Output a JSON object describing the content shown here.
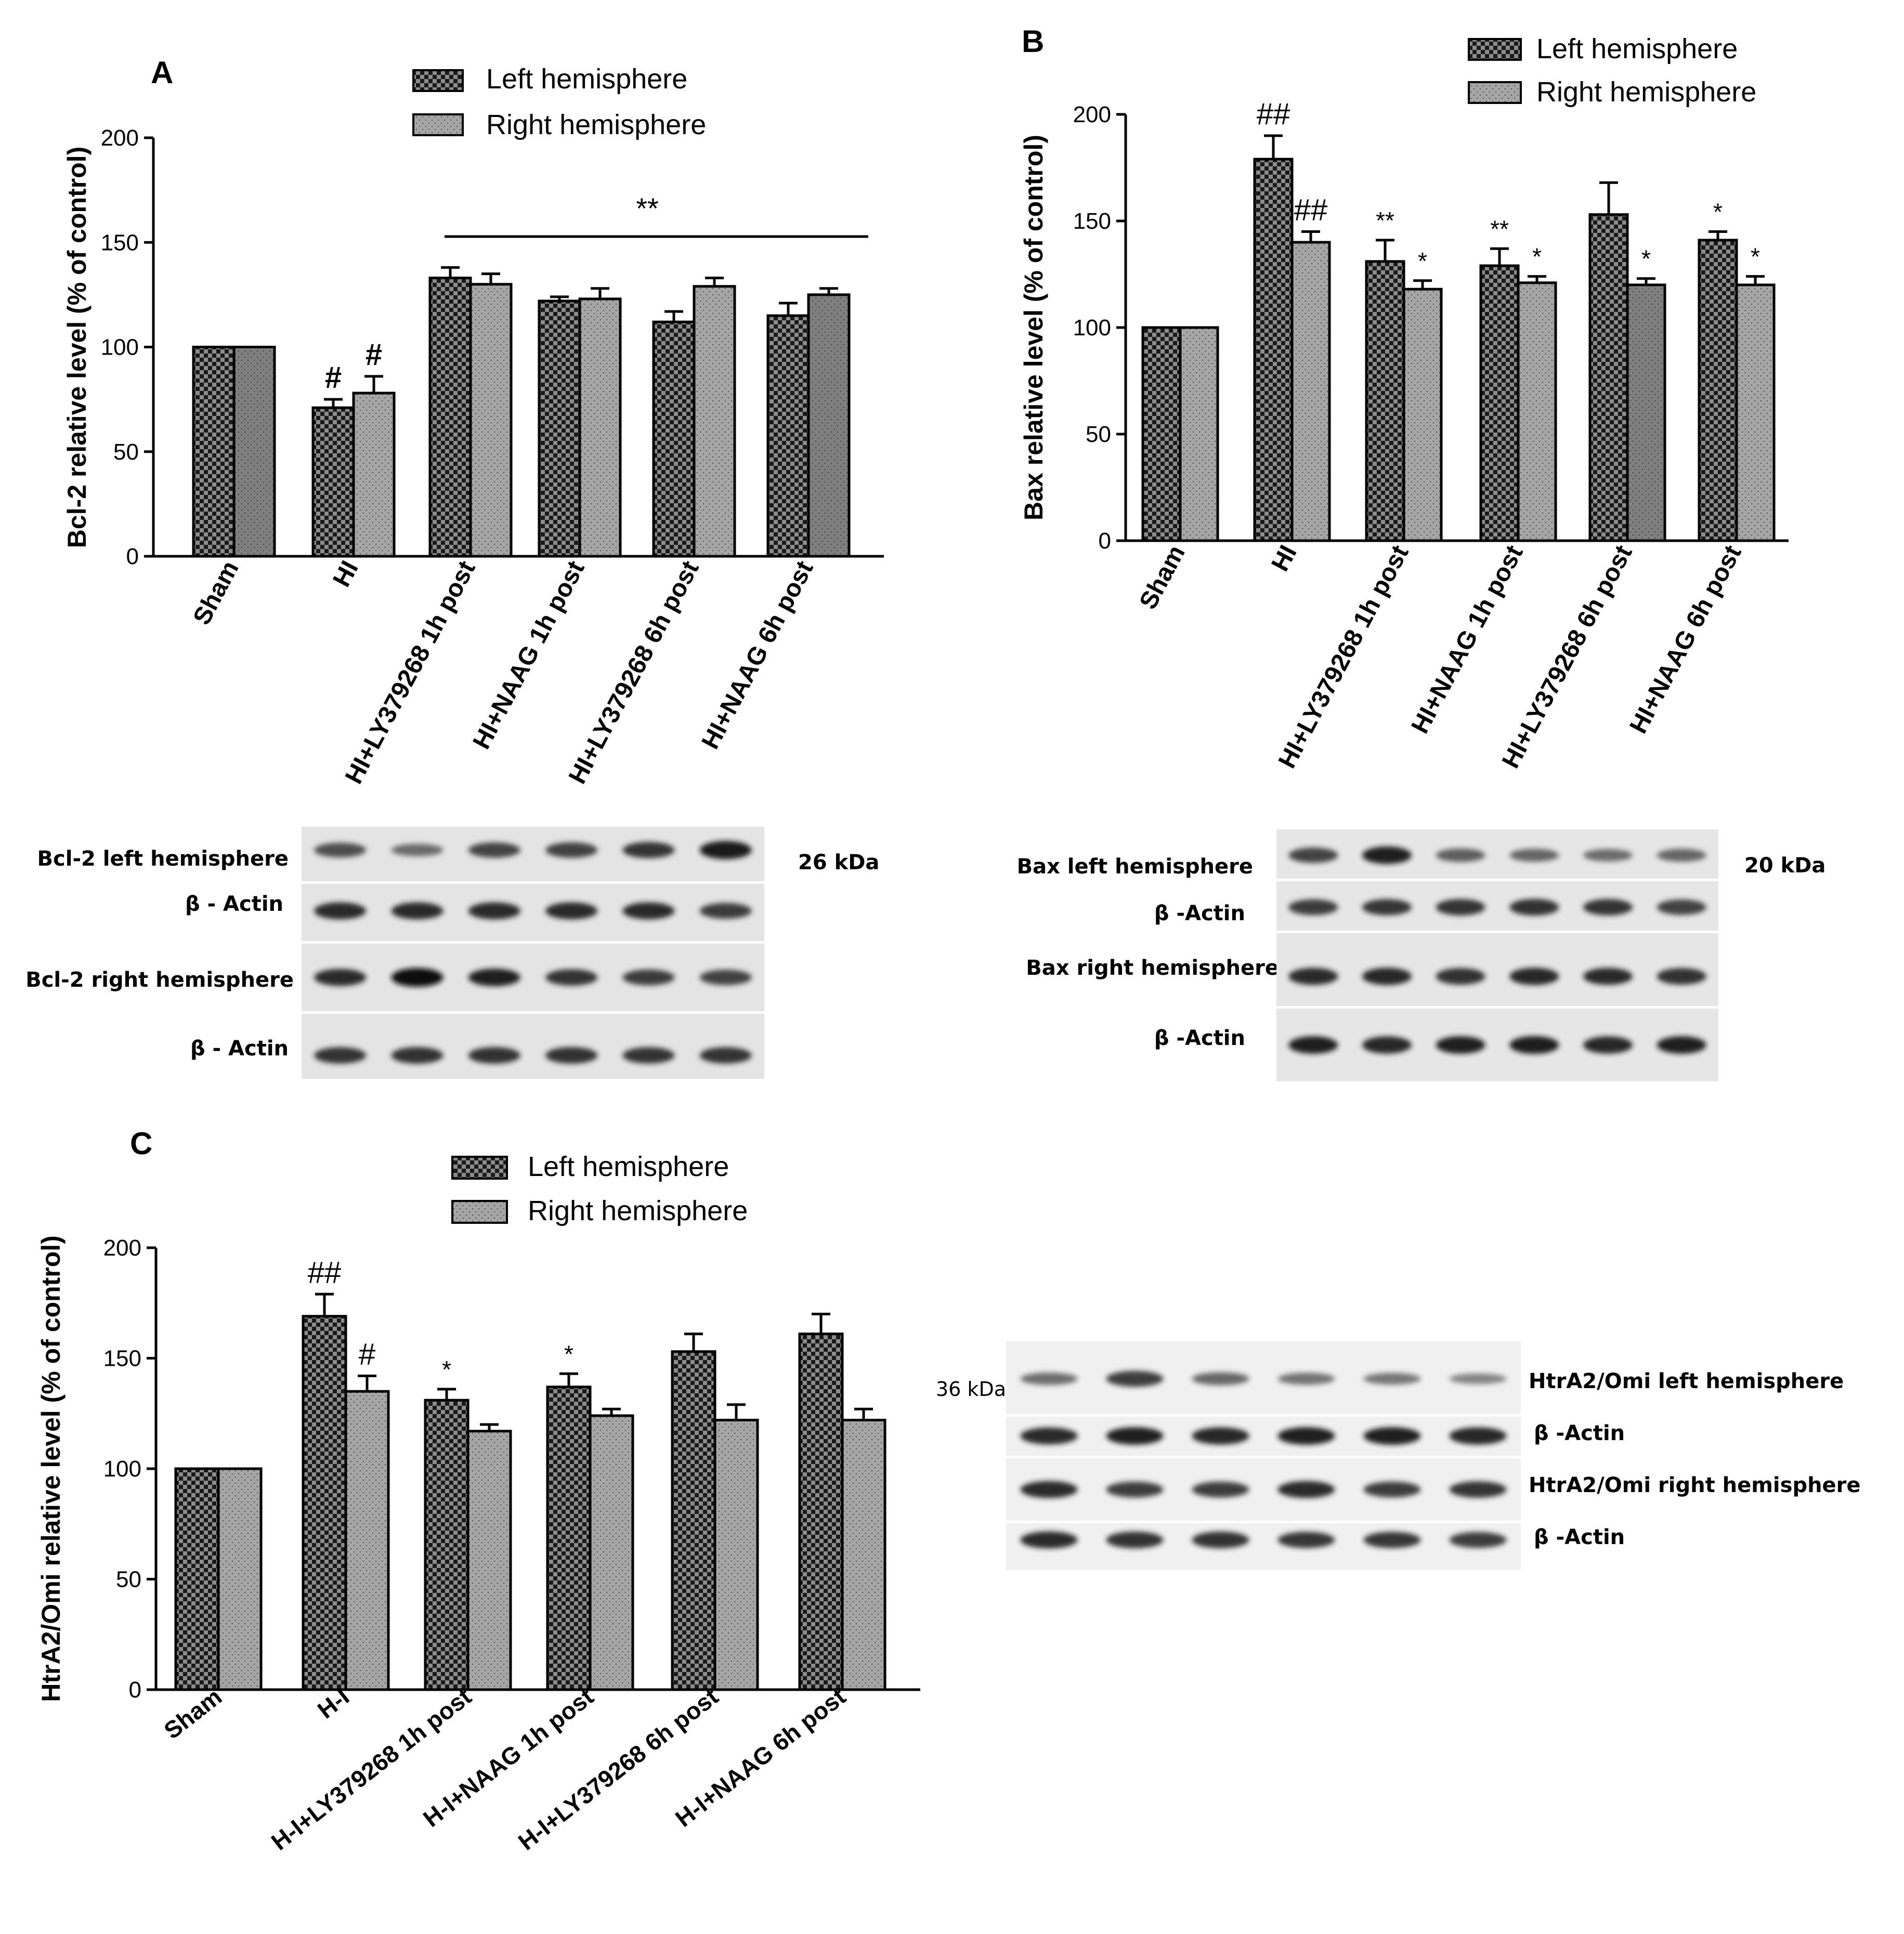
{
  "chart_data": [
    {
      "panel": "A",
      "type": "bar",
      "title": "",
      "xlabel": "",
      "ylabel": "Bcl-2 relative level (% of control)",
      "ylim": [
        0,
        200
      ],
      "yticks": [
        "0",
        "50",
        "100",
        "150",
        "200"
      ],
      "categories": [
        "Sham",
        "HI",
        "HI+LY379268 1h post",
        "HI+NAAG 1h post",
        "HI+LY379268 6h post",
        "HI+NAAG 6h post"
      ],
      "series": [
        {
          "name": "Left hemisphere",
          "values": [
            100,
            71,
            133,
            122,
            112,
            115
          ],
          "errors": [
            0,
            4,
            5,
            2,
            5,
            6
          ]
        },
        {
          "name": "Right hemisphere",
          "values": [
            100,
            78,
            130,
            123,
            129,
            125
          ],
          "errors": [
            0,
            8,
            5,
            5,
            4,
            3
          ]
        }
      ],
      "annotations": [
        {
          "category": 1,
          "series": 0,
          "text": "#"
        },
        {
          "category": 1,
          "series": 1,
          "text": "#"
        }
      ],
      "bracket": {
        "from_category": 2,
        "to_category": 5,
        "text": "**"
      },
      "legend_position": "top",
      "grid": false
    },
    {
      "panel": "B",
      "type": "bar",
      "title": "",
      "xlabel": "",
      "ylabel": "Bax relative level (% of control)",
      "ylim": [
        0,
        200
      ],
      "yticks": [
        "0",
        "50",
        "100",
        "150",
        "200"
      ],
      "categories": [
        "Sham",
        "HI",
        "HI+LY379268 1h post",
        "HI+NAAG 1h post",
        "HI+LY379268 6h post",
        "HI+NAAG 6h post"
      ],
      "series": [
        {
          "name": "Left hemisphere",
          "values": [
            100,
            179,
            131,
            129,
            153,
            141
          ],
          "errors": [
            0,
            11,
            10,
            8,
            15,
            4
          ]
        },
        {
          "name": "Right hemisphere",
          "values": [
            100,
            140,
            118,
            121,
            120,
            120
          ],
          "errors": [
            0,
            5,
            4,
            3,
            3,
            4
          ]
        }
      ],
      "annotations": [
        {
          "category": 1,
          "series": 0,
          "text": "##"
        },
        {
          "category": 1,
          "series": 1,
          "text": "##"
        },
        {
          "category": 2,
          "series": 0,
          "text": "**"
        },
        {
          "category": 2,
          "series": 1,
          "text": "*"
        },
        {
          "category": 3,
          "series": 0,
          "text": "**"
        },
        {
          "category": 3,
          "series": 1,
          "text": "*"
        },
        {
          "category": 4,
          "series": 1,
          "text": "*"
        },
        {
          "category": 5,
          "series": 0,
          "text": "*"
        },
        {
          "category": 5,
          "series": 1,
          "text": "*"
        }
      ],
      "legend_position": "top",
      "grid": false
    },
    {
      "panel": "C",
      "type": "bar",
      "title": "",
      "xlabel": "",
      "ylabel": "HtrA2/Omi relative level (% of control)",
      "ylim": [
        0,
        200
      ],
      "yticks": [
        "0",
        "50",
        "100",
        "150",
        "200"
      ],
      "categories": [
        "Sham",
        "H-I",
        "H-I+LY379268 1h post",
        "H-I+NAAG 1h post",
        "H-I+LY379268 6h post",
        "H-I+NAAG 6h post"
      ],
      "series": [
        {
          "name": "Left hemisphere",
          "values": [
            100,
            169,
            131,
            137,
            153,
            161
          ],
          "errors": [
            0,
            10,
            5,
            6,
            8,
            9
          ]
        },
        {
          "name": "Right hemisphere",
          "values": [
            100,
            135,
            117,
            124,
            122,
            122
          ],
          "errors": [
            0,
            7,
            3,
            3,
            7,
            5
          ]
        }
      ],
      "annotations": [
        {
          "category": 1,
          "series": 0,
          "text": "##"
        },
        {
          "category": 1,
          "series": 1,
          "text": "#"
        },
        {
          "category": 2,
          "series": 0,
          "text": "*"
        },
        {
          "category": 3,
          "series": 0,
          "text": "*"
        }
      ],
      "legend_position": "top",
      "grid": false
    }
  ],
  "blots": {
    "A": {
      "labels": [
        "Bcl-2 left hemisphere",
        "β - Actin",
        "Bcl-2 right hemisphere",
        "β - Actin"
      ],
      "kda": "26 kDa",
      "band_intensity": [
        [
          0.65,
          0.45,
          0.7,
          0.72,
          0.78,
          0.95
        ],
        [
          0.85,
          0.85,
          0.85,
          0.85,
          0.85,
          0.75
        ],
        [
          0.85,
          1.0,
          0.9,
          0.8,
          0.75,
          0.72
        ],
        [
          0.8,
          0.82,
          0.82,
          0.82,
          0.8,
          0.8
        ]
      ]
    },
    "B": {
      "labels": [
        "Bax  left hemisphere",
        "β -Actin",
        "Bax right hemisphere",
        "β -Actin"
      ],
      "kda": "20 kDa",
      "band_intensity": [
        [
          0.7,
          0.9,
          0.55,
          0.5,
          0.45,
          0.5
        ],
        [
          0.75,
          0.78,
          0.8,
          0.82,
          0.8,
          0.72
        ],
        [
          0.85,
          0.88,
          0.82,
          0.88,
          0.85,
          0.82
        ],
        [
          0.9,
          0.88,
          0.9,
          0.92,
          0.88,
          0.9
        ]
      ]
    },
    "C": {
      "labels": [
        "HtrA2/Omi left hemisphere",
        "β -Actin",
        "HtrA2/Omi right hemisphere",
        "β -Actin"
      ],
      "kda": "36 kDa",
      "band_intensity": [
        [
          0.45,
          0.75,
          0.5,
          0.42,
          0.4,
          0.3
        ],
        [
          0.85,
          0.9,
          0.88,
          0.9,
          0.9,
          0.88
        ],
        [
          0.85,
          0.75,
          0.75,
          0.85,
          0.75,
          0.8
        ],
        [
          0.85,
          0.82,
          0.82,
          0.78,
          0.78,
          0.75
        ]
      ]
    }
  }
}
